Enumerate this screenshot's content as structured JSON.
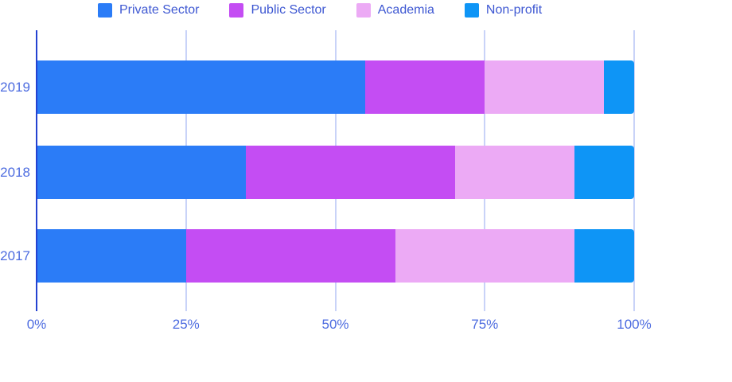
{
  "chart_data": {
    "type": "bar",
    "orientation": "horizontal",
    "stacked": true,
    "title": "",
    "xlabel": "",
    "ylabel": "",
    "categories": [
      "2019",
      "2018",
      "2017"
    ],
    "series": [
      {
        "name": "Private Sector",
        "color": "#2B7CF7",
        "values": [
          55,
          35,
          25
        ]
      },
      {
        "name": "Public Sector",
        "color": "#C44DF3",
        "values": [
          20,
          35,
          35
        ]
      },
      {
        "name": "Academia",
        "color": "#ECAAF5",
        "values": [
          20,
          20,
          30
        ]
      },
      {
        "name": "Non-profit",
        "color": "#0E95F6",
        "values": [
          5,
          10,
          10
        ]
      }
    ],
    "x_ticks": [
      "0%",
      "25%",
      "50%",
      "75%",
      "100%"
    ],
    "x_tick_percents": [
      0,
      25,
      50,
      75,
      100
    ],
    "xlim": [
      0,
      100
    ],
    "grid": true,
    "legend_position": "top"
  },
  "colors": {
    "axis_line": "#2442D1",
    "gridline": "#C9D3F8",
    "tick_text": "#4D6CE0",
    "legend_text": "#3D57D2",
    "background": "#ffffff"
  }
}
